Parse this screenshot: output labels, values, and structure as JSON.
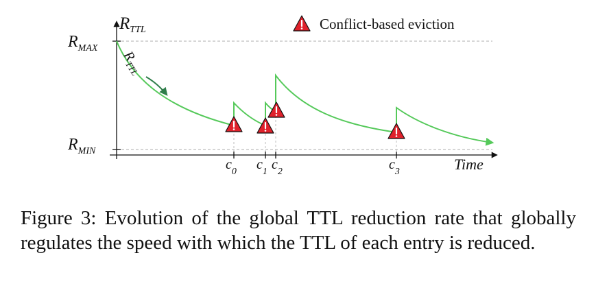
{
  "diagram": {
    "y_axis_label": {
      "base": "R",
      "sub": "TTL"
    },
    "curve_label": {
      "base": "R",
      "sub": "TTL"
    },
    "r_max": {
      "base": "R",
      "sub": "MAX"
    },
    "r_min": {
      "base": "R",
      "sub": "MIN"
    },
    "x_axis_label": "Time",
    "legend": {
      "label": "Conflict-based eviction",
      "marker": "warning-triangle-icon"
    },
    "events": [
      {
        "base": "c",
        "sub": "0"
      },
      {
        "base": "c",
        "sub": "1"
      },
      {
        "base": "c",
        "sub": "2"
      },
      {
        "base": "c",
        "sub": "3"
      }
    ],
    "colors": {
      "curve": "#55c95a",
      "arrow": "#2f7d4a",
      "marker": "#e0212b",
      "guide": "#c8c8c8"
    }
  },
  "caption": "Figure 3: Evolution of the global TTL reduction rate that globally regulates the speed with which the TTL of each entry is reduced."
}
